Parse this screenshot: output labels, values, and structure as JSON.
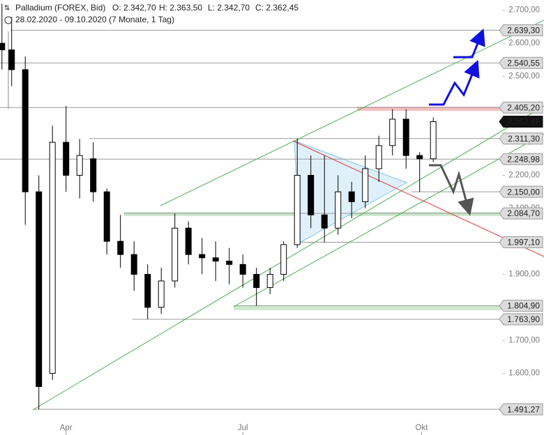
{
  "chart_data": {
    "type": "candlestick",
    "title": "Palladium (FOREX, Bid)",
    "ohlc_header": [
      {
        "label": "O: 2.342,70",
        "value": 2342.7
      },
      {
        "label": "H: 2.363,50",
        "value": 2363.5
      },
      {
        "label": "L: 2.342,70",
        "value": 2342.7
      },
      {
        "label": "C: 2.362,45",
        "value": 2362.45
      }
    ],
    "subtitle": "28.02.2020 - 09.10.2020  (7 Monate, 1 Tag)",
    "x": [
      "2020-02-28",
      "2020-03-04",
      "2020-03-11",
      "2020-03-18",
      "2020-03-25",
      "2020-04-01",
      "2020-04-08",
      "2020-04-15",
      "2020-04-22",
      "2020-04-29",
      "2020-05-06",
      "2020-05-13",
      "2020-05-20",
      "2020-05-27",
      "2020-06-03",
      "2020-06-10",
      "2020-06-17",
      "2020-06-24",
      "2020-07-01",
      "2020-07-08",
      "2020-07-15",
      "2020-07-22",
      "2020-07-29",
      "2020-08-05",
      "2020-08-12",
      "2020-08-19",
      "2020-08-26",
      "2020-09-02",
      "2020-09-09",
      "2020-09-16",
      "2020-09-23",
      "2020-09-30",
      "2020-10-07"
    ],
    "open": [
      2600,
      2580,
      2520,
      2150,
      1600,
      2300,
      2200,
      2250,
      2150,
      2000,
      1960,
      1900,
      1800,
      1880,
      2040,
      1960,
      1950,
      1940,
      1930,
      1900,
      1860,
      1900,
      1990,
      2200,
      2080,
      2040,
      2150,
      2120,
      2220,
      2290,
      2370,
      2260,
      2250
    ],
    "high": [
      2720,
      2680,
      2560,
      2200,
      2350,
      2410,
      2310,
      2300,
      2160,
      2080,
      2000,
      1930,
      1920,
      2084.7,
      2060,
      2010,
      2000,
      1980,
      1960,
      1920,
      1920,
      2000,
      2311.3,
      2260,
      2260,
      2200,
      2180,
      2260,
      2320,
      2400,
      2400,
      2270,
      2375
    ],
    "low": [
      2520,
      2470,
      2050,
      1491.27,
      1580,
      2150,
      2130,
      2120,
      1960,
      1920,
      1850,
      1763.9,
      1780,
      1860,
      1930,
      1900,
      1880,
      1870,
      1860,
      1804.9,
      1840,
      1880,
      1980,
      2040,
      1997.1,
      2020,
      2070,
      2100,
      2180,
      2260,
      2220,
      2150,
      2240
    ],
    "close": [
      2580,
      2520,
      2150,
      1560,
      2300,
      2200,
      2260,
      2150,
      2000,
      1960,
      1900,
      1800,
      1880,
      2040,
      1960,
      1950,
      1940,
      1930,
      1900,
      1860,
      1900,
      1990,
      2200,
      2080,
      2040,
      2150,
      2120,
      2220,
      2290,
      2370,
      2260,
      2250,
      2362.45
    ],
    "up_color": "#ffffff",
    "down_color": "#000000",
    "xlim": [
      "2020-02-27",
      "2020-12-03"
    ],
    "xticks": [
      {
        "value": "2020-04-01",
        "label": "Apr"
      },
      {
        "value": "2020-07-01",
        "label": "Jul"
      },
      {
        "value": "2020-10-01",
        "label": "Okt"
      }
    ],
    "ylim": [
      1445,
      2731
    ],
    "yticks": [
      {
        "value": 1600,
        "label": "1.600,00"
      },
      {
        "value": 1700,
        "label": "1.700,00"
      },
      {
        "value": 1800,
        "label": "1.800,00"
      },
      {
        "value": 1900,
        "label": "1.900,00"
      },
      {
        "value": 2000,
        "label": "2.000,00"
      },
      {
        "value": 2100,
        "label": "2.100,00"
      },
      {
        "value": 2200,
        "label": "2.200,00"
      },
      {
        "value": 2300,
        "label": "2.300,00"
      },
      {
        "value": 2400,
        "label": "2.400,00"
      },
      {
        "value": 2500,
        "label": "2.500,00"
      },
      {
        "value": 2600,
        "label": "2.600,00"
      },
      {
        "value": 2700,
        "label": "2.700,00"
      }
    ],
    "levels": [
      {
        "value": 2639.3,
        "label": "2.639,30"
      },
      {
        "value": 2540.55,
        "label": "2.540,55"
      },
      {
        "value": 2405.2,
        "label": "2.405,20"
      },
      {
        "value": 2362.45,
        "label": "2.362,45"
      },
      {
        "value": 2311.3,
        "label": "2.311,30"
      },
      {
        "value": 2248.98,
        "label": "2.248,98"
      },
      {
        "value": 2150.0,
        "label": "2.150,00"
      },
      {
        "value": 2084.7,
        "label": "2.084,70"
      },
      {
        "value": 1997.1,
        "label": "1.997,10"
      },
      {
        "value": 1804.9,
        "label": "1.804,90"
      },
      {
        "value": 1763.9,
        "label": "1.763,90"
      },
      {
        "value": 1491.27,
        "label": "1.491,27"
      }
    ]
  }
}
